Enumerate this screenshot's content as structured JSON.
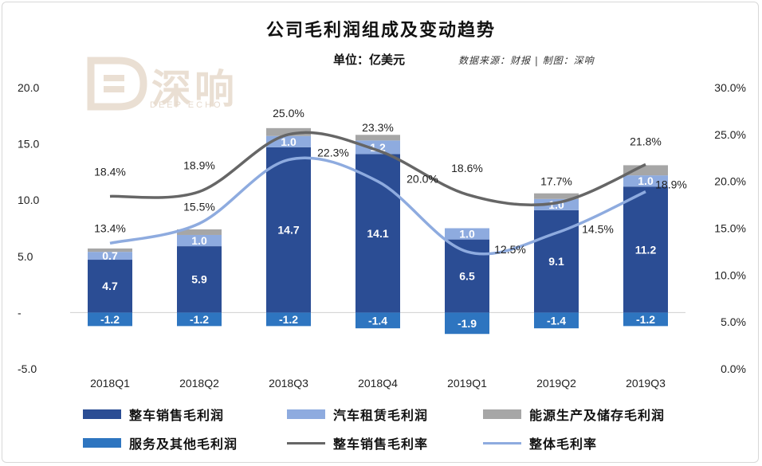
{
  "chart_data": {
    "type": "bar",
    "title": "公司毛利润组成及变动趋势",
    "unit_label": "单位：亿美元",
    "source_label": "数据来源：财报 | 制图：深响",
    "watermark": {
      "text": "深响",
      "subtext": "DEEP ECHO"
    },
    "categories": [
      "2018Q1",
      "2018Q2",
      "2018Q3",
      "2018Q4",
      "2019Q1",
      "2019Q2",
      "2019Q3"
    ],
    "ylim_left": [
      -5,
      20
    ],
    "ylim_right": [
      0,
      30
    ],
    "left_ticks": [
      "20.0",
      "15.0",
      "10.0",
      "5.0",
      "-",
      "-5.0"
    ],
    "right_ticks": [
      "30.0%",
      "25.0%",
      "20.0%",
      "15.0%",
      "10.0%",
      "5.0%",
      "0.0%"
    ],
    "series": [
      {
        "name": "整车销售毛利润",
        "kind": "bar",
        "color": "#2b4d94",
        "values": [
          4.7,
          5.9,
          14.7,
          14.1,
          6.5,
          9.1,
          11.2
        ],
        "labels": [
          "4.7",
          "5.9",
          "14.7",
          "14.1",
          "6.5",
          "9.1",
          "11.2"
        ]
      },
      {
        "name": "汽车租赁毛利润",
        "kind": "bar",
        "color": "#8eabdf",
        "values": [
          0.7,
          1.0,
          1.0,
          1.2,
          1.0,
          1.0,
          1.0
        ],
        "labels": [
          "0.7",
          "1.0",
          "1.0",
          "1.2",
          "1.0",
          "1.0",
          "1.0"
        ]
      },
      {
        "name": "能源生产及储存毛利润",
        "kind": "bar",
        "color": "#a6a6a6",
        "values": [
          0.3,
          0.5,
          0.7,
          0.5,
          0.0,
          0.5,
          0.9
        ],
        "labels": []
      },
      {
        "name": "服务及其他毛利润",
        "kind": "bar",
        "color": "#2e75c0",
        "values": [
          -1.2,
          -1.2,
          -1.2,
          -1.4,
          -1.9,
          -1.4,
          -1.2
        ],
        "labels": [
          "-1.2",
          "-1.2",
          "-1.2",
          "-1.4",
          "-1.9",
          "-1.4",
          "-1.2"
        ]
      },
      {
        "name": "整车销售毛利率",
        "kind": "line",
        "color": "#666666",
        "values": [
          18.4,
          18.9,
          25.0,
          23.3,
          18.6,
          17.7,
          21.8
        ],
        "labels": [
          "18.4%",
          "18.9%",
          "25.0%",
          "23.3%",
          "18.6%",
          "17.7%",
          "21.8%"
        ]
      },
      {
        "name": "整体毛利率",
        "kind": "line",
        "color": "#8eabdf",
        "values": [
          13.4,
          15.5,
          22.3,
          20.0,
          12.5,
          14.5,
          18.9
        ],
        "labels": [
          "13.4%",
          "15.5%",
          "22.3%",
          "20.0%",
          "12.5%",
          "14.5%",
          "18.9%"
        ]
      }
    ]
  }
}
